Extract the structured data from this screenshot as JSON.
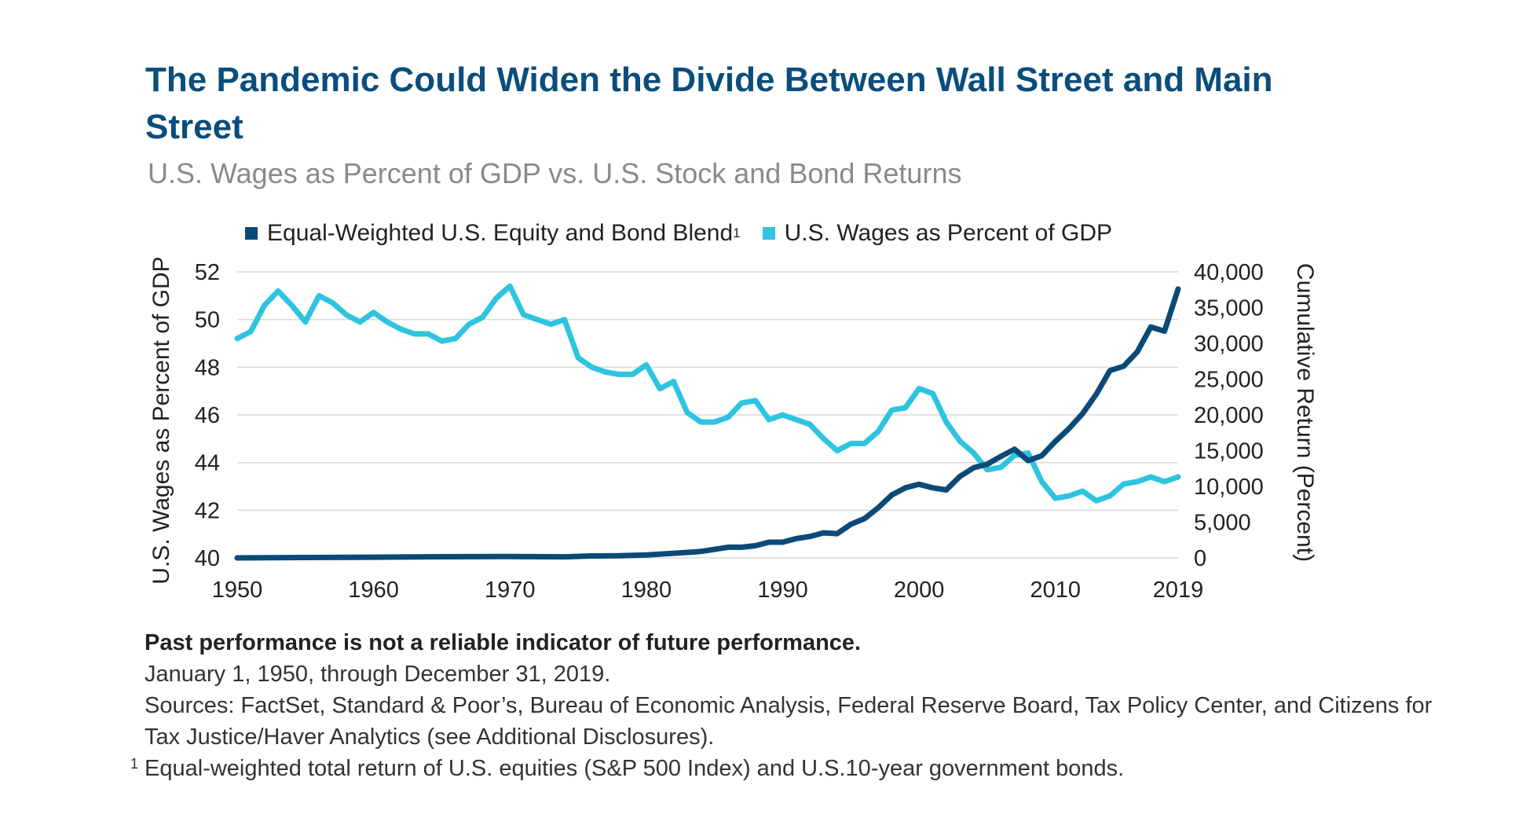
{
  "title": "The Pandemic Could Widen the Divide Between Wall Street and Main Street",
  "subtitle": "U.S. Wages as Percent of GDP vs. U.S. Stock and Bond Returns",
  "colors": {
    "title": "#0b4d7c",
    "blend": "#0b4a78",
    "wages": "#2ec4e0"
  },
  "legend": {
    "blend": "Equal-Weighted U.S. Equity and Bond Blend",
    "blend_sup": "1",
    "wages": "U.S. Wages as Percent of GDP"
  },
  "chart_data": {
    "type": "line",
    "xlim": [
      1950,
      2019
    ],
    "x_ticks": [
      "1950",
      "1960",
      "1970",
      "1980",
      "1990",
      "2000",
      "2010",
      "2019"
    ],
    "left_axis": {
      "label": "U.S. Wages as Percent of GDP",
      "range": [
        40,
        52
      ],
      "ticks": [
        "40",
        "42",
        "44",
        "46",
        "48",
        "50",
        "52"
      ]
    },
    "right_axis": {
      "label": "Cumulative Return (Percent)",
      "range": [
        0,
        40000
      ],
      "ticks": [
        "0",
        "5,000",
        "10,000",
        "15,000",
        "20,000",
        "25,000",
        "30,000",
        "35,000",
        "40,000"
      ]
    },
    "series": [
      {
        "name": "Equal-Weighted U.S. Equity and Bond Blend",
        "axis": "right",
        "x": [
          1950,
          1955,
          1960,
          1965,
          1970,
          1974,
          1976,
          1978,
          1980,
          1982,
          1984,
          1986,
          1987,
          1988,
          1989,
          1990,
          1991,
          1992,
          1993,
          1994,
          1995,
          1996,
          1997,
          1998,
          1999,
          2000,
          2001,
          2002,
          2003,
          2004,
          2005,
          2006,
          2007,
          2008,
          2009,
          2010,
          2011,
          2012,
          2013,
          2014,
          2015,
          2016,
          2017,
          2018,
          2019
        ],
        "y": [
          0,
          60,
          100,
          160,
          200,
          150,
          280,
          300,
          420,
          650,
          900,
          1500,
          1500,
          1700,
          2200,
          2200,
          2700,
          3000,
          3500,
          3400,
          4700,
          5500,
          7000,
          8800,
          9800,
          10300,
          9800,
          9500,
          11400,
          12600,
          13100,
          14200,
          15200,
          13600,
          14300,
          16300,
          18100,
          20200,
          22900,
          26200,
          26800,
          28800,
          32300,
          31700,
          37600
        ]
      },
      {
        "name": "U.S. Wages as Percent of GDP",
        "axis": "left",
        "x": [
          1950,
          1951,
          1952,
          1953,
          1954,
          1955,
          1956,
          1957,
          1958,
          1959,
          1960,
          1961,
          1962,
          1963,
          1964,
          1965,
          1966,
          1967,
          1968,
          1969,
          1970,
          1971,
          1972,
          1973,
          1974,
          1975,
          1976,
          1977,
          1978,
          1979,
          1980,
          1981,
          1982,
          1983,
          1984,
          1985,
          1986,
          1987,
          1988,
          1989,
          1990,
          1991,
          1992,
          1993,
          1994,
          1995,
          1996,
          1997,
          1998,
          1999,
          2000,
          2001,
          2002,
          2003,
          2004,
          2005,
          2006,
          2007,
          2008,
          2009,
          2010,
          2011,
          2012,
          2013,
          2014,
          2015,
          2016,
          2017,
          2018,
          2019
        ],
        "y": [
          49.2,
          49.5,
          50.6,
          51.2,
          50.6,
          49.9,
          51.0,
          50.7,
          50.2,
          49.9,
          50.3,
          49.9,
          49.6,
          49.4,
          49.4,
          49.1,
          49.2,
          49.8,
          50.1,
          50.9,
          51.4,
          50.2,
          50.0,
          49.8,
          50.0,
          48.4,
          48.0,
          47.8,
          47.7,
          47.7,
          48.1,
          47.1,
          47.4,
          46.1,
          45.7,
          45.7,
          45.9,
          46.5,
          46.6,
          45.8,
          46.0,
          45.8,
          45.6,
          45.0,
          44.5,
          44.8,
          44.8,
          45.3,
          46.2,
          46.3,
          47.1,
          46.9,
          45.7,
          44.9,
          44.4,
          43.7,
          43.8,
          44.3,
          44.4,
          43.2,
          42.5,
          42.6,
          42.8,
          42.4,
          42.6,
          43.1,
          43.2,
          43.4,
          43.2,
          43.4
        ]
      }
    ]
  },
  "notes": {
    "disclaimer": "Past performance is not a reliable indicator of future performance.",
    "period": "January 1, 1950, through December 31, 2019.",
    "sources": "Sources: FactSet, Standard & Poor’s, Bureau of Economic Analysis, Federal Reserve Board, Tax Policy Center, and Citizens for Tax Justice/Haver Analytics (see Additional Disclosures).",
    "footnote_marker": "1",
    "footnote": "Equal-weighted total return of U.S. equities (S&P 500 Index) and U.S.10-year government bonds."
  }
}
